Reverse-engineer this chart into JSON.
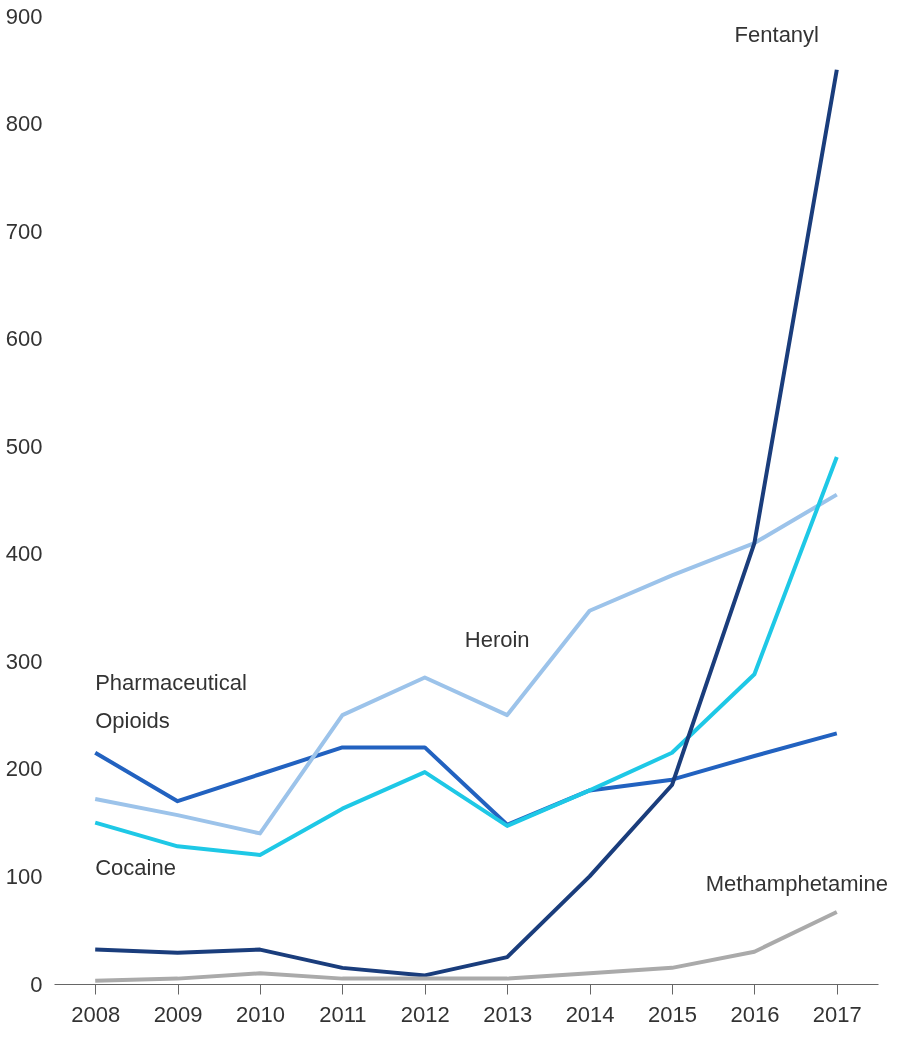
{
  "chart_data": {
    "type": "line",
    "categories": [
      "2008",
      "2009",
      "2010",
      "2011",
      "2012",
      "2013",
      "2014",
      "2015",
      "2016",
      "2017"
    ],
    "series": [
      {
        "name": "Pharmaceutical Opioids",
        "color": "#2262c0",
        "values": [
          215,
          170,
          195,
          220,
          220,
          148,
          180,
          190,
          212,
          233
        ]
      },
      {
        "name": "Heroin",
        "color": "#9cc3ea",
        "values": [
          172,
          157,
          140,
          250,
          285,
          250,
          347,
          380,
          410,
          455
        ]
      },
      {
        "name": "Cocaine",
        "color": "#1ec8e6",
        "values": [
          150,
          128,
          120,
          163,
          197,
          147,
          180,
          215,
          288,
          490
        ]
      },
      {
        "name": "Fentanyl",
        "color": "#1a3d7c",
        "values": [
          32,
          29,
          32,
          15,
          8,
          25,
          100,
          185,
          410,
          850
        ]
      },
      {
        "name": "Methamphetamine",
        "color": "#aaaaaa",
        "values": [
          3,
          5,
          10,
          5,
          5,
          5,
          10,
          15,
          30,
          67
        ]
      }
    ],
    "ylim": [
      0,
      900
    ],
    "yticks": [
      0,
      100,
      200,
      300,
      400,
      500,
      600,
      700,
      800,
      900
    ],
    "grid": false,
    "marker": "none",
    "line_style": "solid"
  }
}
